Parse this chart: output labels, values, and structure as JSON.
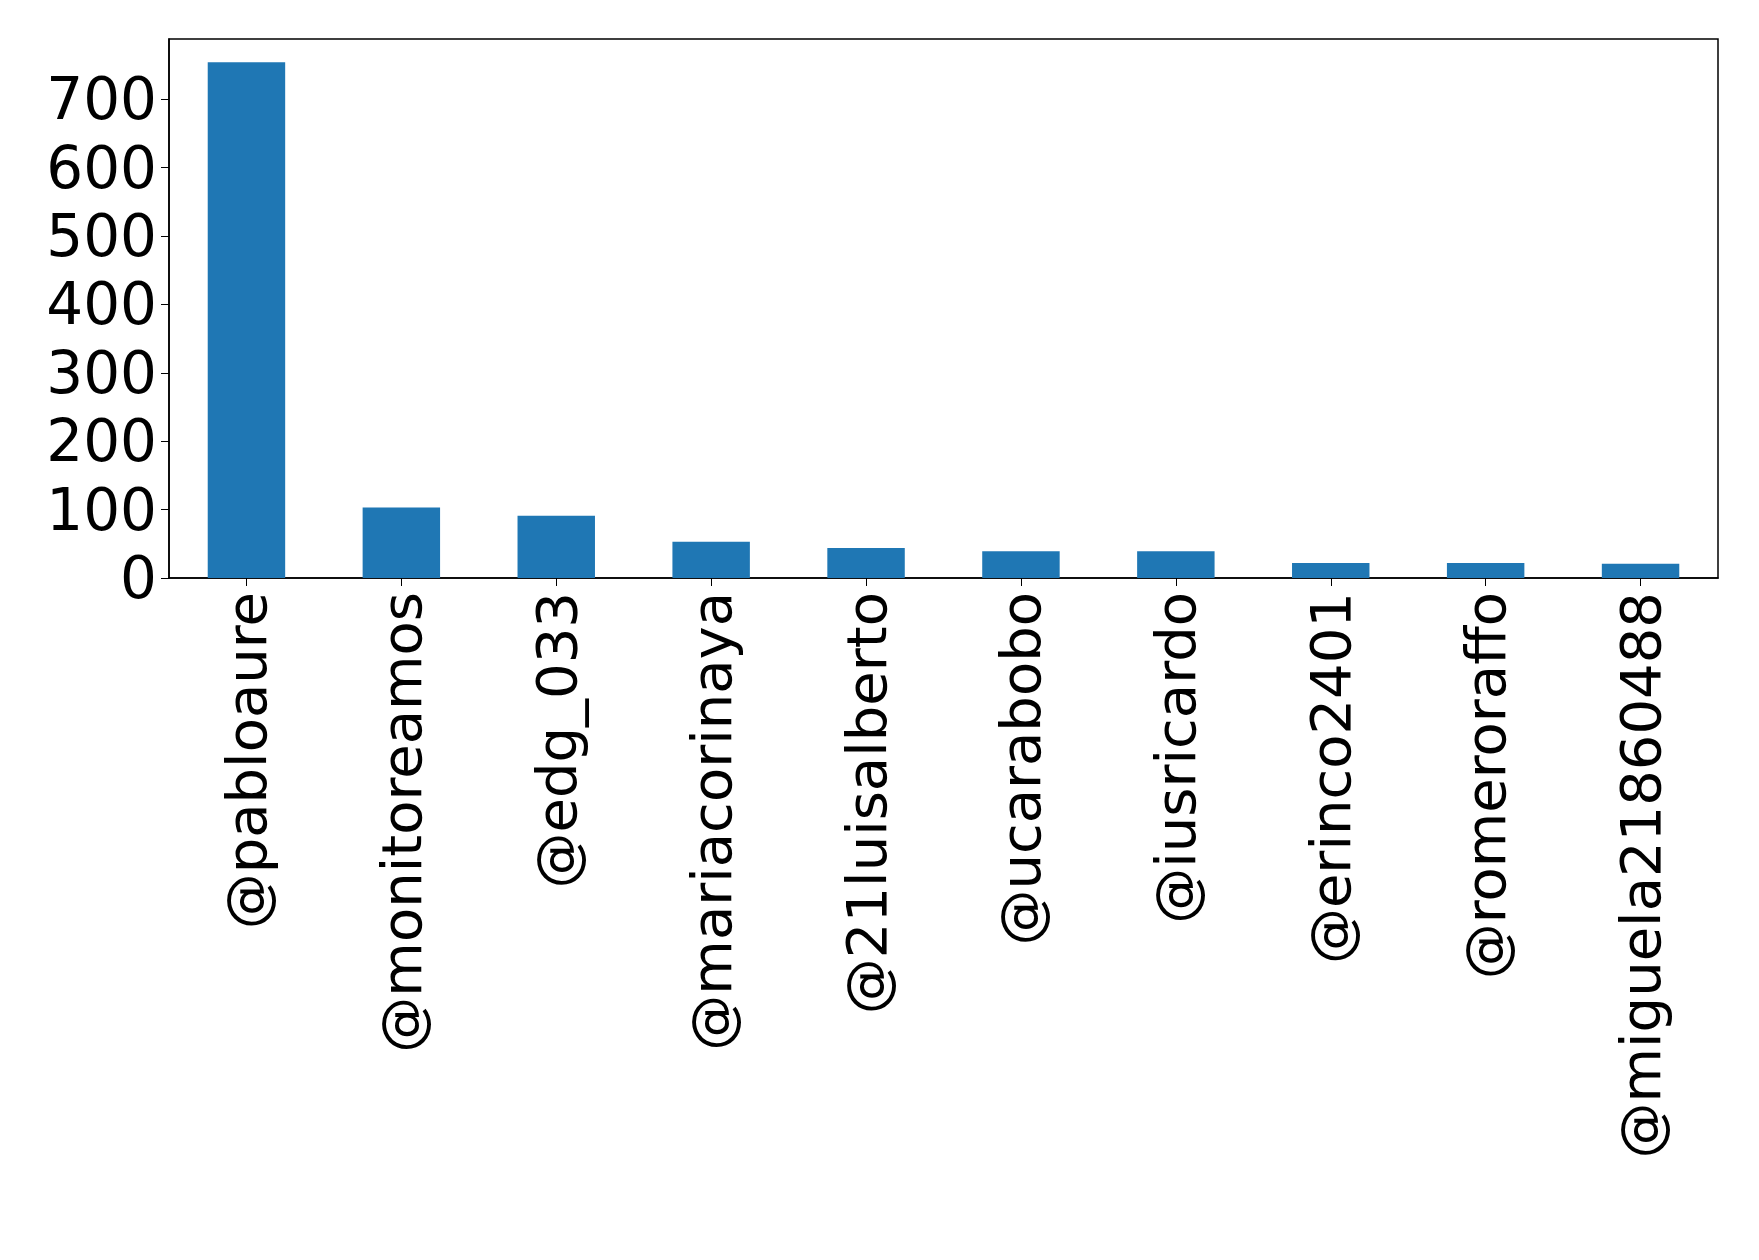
{
  "chart_data": {
    "type": "bar",
    "categories": [
      "@pabloaure",
      "@monitoreamos",
      "@edg_033",
      "@mariacorinaya",
      "@21luisalberto",
      "@ucarabobo",
      "@iusricardo",
      "@erinco2401",
      "@romeroraffo",
      "@miguela21860488"
    ],
    "values": [
      754,
      103,
      91,
      53,
      44,
      39,
      39,
      22,
      22,
      21
    ],
    "color": "#1f77b4",
    "ylim": [
      0,
      788
    ],
    "yticks": [
      0,
      100,
      200,
      300,
      400,
      500,
      600,
      700
    ],
    "grid": false
  }
}
